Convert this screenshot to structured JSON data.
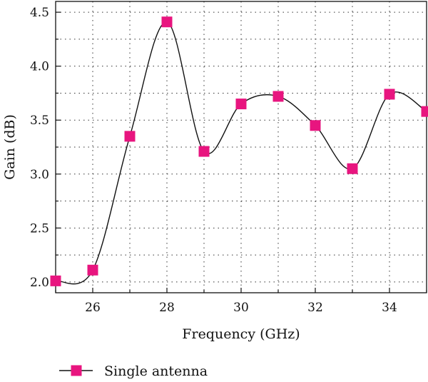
{
  "chart_data": {
    "type": "line",
    "xlabel": "Frequency (GHz)",
    "ylabel": "Gain (dB)",
    "xlim": [
      25,
      35
    ],
    "ylim": [
      1.9,
      4.6
    ],
    "x_ticks": [
      26,
      28,
      30,
      32,
      34
    ],
    "y_ticks": [
      2.0,
      2.5,
      3.0,
      3.5,
      4.0,
      4.5
    ],
    "x_tick_labels": [
      "26",
      "28",
      "30",
      "32",
      "34"
    ],
    "y_tick_labels": [
      "2.0",
      "2.5",
      "3.0",
      "3.5",
      "4.0",
      "4.5"
    ],
    "grid": true,
    "legend_position": "bottom-left",
    "series": [
      {
        "name": "Single antenna",
        "marker": "square",
        "line_color": "#111111",
        "marker_color": "#e8157f",
        "x": [
          25,
          26,
          27,
          28,
          29,
          30,
          31,
          32,
          33,
          34,
          35
        ],
        "y": [
          2.01,
          2.11,
          3.35,
          4.41,
          3.21,
          3.65,
          3.72,
          3.45,
          3.05,
          3.74,
          3.58
        ]
      }
    ]
  }
}
